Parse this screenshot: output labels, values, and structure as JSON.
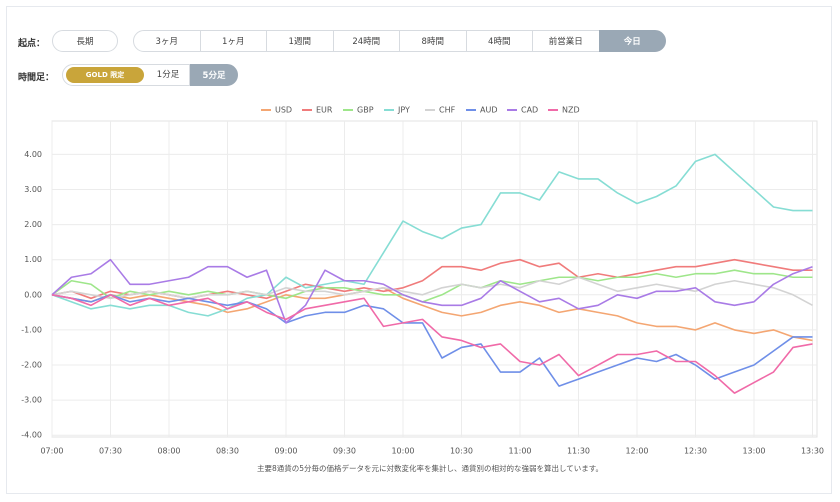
{
  "controls": {
    "start_label": "起点：",
    "long_term": {
      "label": "長期",
      "selected": false
    },
    "start_options": [
      {
        "label": "3ヶ月",
        "selected": false
      },
      {
        "label": "1ヶ月",
        "selected": false
      },
      {
        "label": "1週間",
        "selected": false
      },
      {
        "label": "24時間",
        "selected": false
      },
      {
        "label": "8時間",
        "selected": false
      },
      {
        "label": "4時間",
        "selected": false
      },
      {
        "label": "前営業日",
        "selected": false
      },
      {
        "label": "今日",
        "selected": true
      }
    ],
    "timeframe_label": "時間足：",
    "gold_badge": "GOLD 限定",
    "timeframe_options": [
      {
        "label": "1分足",
        "selected": false
      },
      {
        "label": "5分足",
        "selected": true
      }
    ]
  },
  "chart_data": {
    "type": "line",
    "legend": "top",
    "grid": true,
    "caption": "主要8通貨の5分毎の価格データを元に対数変化率を集計し、通貨別の相対的な強弱を算出しています。",
    "x": [
      "07:00",
      "07:10",
      "07:20",
      "07:30",
      "07:40",
      "07:50",
      "08:00",
      "08:10",
      "08:20",
      "08:30",
      "08:40",
      "08:50",
      "09:00",
      "09:10",
      "09:20",
      "09:30",
      "09:40",
      "09:50",
      "10:00",
      "10:10",
      "10:20",
      "10:30",
      "10:40",
      "10:50",
      "11:00",
      "11:10",
      "11:20",
      "11:30",
      "11:40",
      "11:50",
      "12:00",
      "12:10",
      "12:20",
      "12:30",
      "12:40",
      "12:50",
      "13:00",
      "13:10",
      "13:20",
      "13:30"
    ],
    "xticks": [
      "07:00",
      "07:30",
      "08:00",
      "08:30",
      "09:00",
      "09:30",
      "10:00",
      "10:30",
      "11:00",
      "11:30",
      "12:00",
      "12:30",
      "13:00",
      "13:30"
    ],
    "ylim": [
      -4.05,
      4.95
    ],
    "yticks": [
      {
        "value": 4,
        "label": "4.00"
      },
      {
        "value": 3,
        "label": "3.00"
      },
      {
        "value": 2,
        "label": "2.00"
      },
      {
        "value": 1,
        "label": "1.00"
      },
      {
        "value": 0,
        "label": "0.00"
      },
      {
        "value": -1,
        "label": "-1.00"
      },
      {
        "value": -2,
        "label": "-2.00"
      },
      {
        "value": -3,
        "label": "-3.00"
      },
      {
        "value": -4,
        "label": "-4.00"
      }
    ],
    "series": [
      {
        "name": "USD",
        "color": "#f4a672",
        "values": [
          0,
          -0.1,
          -0.2,
          0,
          -0.1,
          0,
          -0.1,
          -0.2,
          -0.3,
          -0.5,
          -0.4,
          -0.2,
          0,
          -0.1,
          -0.1,
          0,
          0.1,
          0.2,
          -0.1,
          -0.3,
          -0.5,
          -0.6,
          -0.5,
          -0.3,
          -0.2,
          -0.3,
          -0.5,
          -0.4,
          -0.5,
          -0.6,
          -0.8,
          -0.9,
          -0.9,
          -1.0,
          -0.8,
          -1.0,
          -1.1,
          -1.0,
          -1.2,
          -1.3
        ]
      },
      {
        "name": "EUR",
        "color": "#f07b7b",
        "values": [
          0,
          0.1,
          -0.1,
          0.1,
          0,
          0.1,
          0,
          -0.1,
          0,
          0.1,
          0,
          -0.1,
          0.1,
          0.3,
          0.2,
          0.1,
          0.2,
          0.1,
          0.2,
          0.4,
          0.8,
          0.8,
          0.7,
          0.9,
          1.0,
          0.8,
          0.9,
          0.5,
          0.6,
          0.5,
          0.6,
          0.7,
          0.8,
          0.8,
          0.9,
          1.0,
          0.9,
          0.8,
          0.7,
          0.7
        ]
      },
      {
        "name": "GBP",
        "color": "#9ee68a",
        "values": [
          0,
          0.4,
          0.3,
          -0.1,
          0.1,
          0,
          0.1,
          0,
          0.1,
          0,
          0.1,
          0,
          -0.1,
          0.1,
          0.2,
          0.2,
          0.1,
          0,
          0,
          -0.2,
          0,
          0.3,
          0.2,
          0.4,
          0.3,
          0.4,
          0.5,
          0.5,
          0.4,
          0.5,
          0.5,
          0.6,
          0.5,
          0.6,
          0.6,
          0.7,
          0.6,
          0.6,
          0.5,
          0.5
        ]
      },
      {
        "name": "JPY",
        "color": "#86ddd4",
        "values": [
          0,
          -0.2,
          -0.4,
          -0.3,
          -0.4,
          -0.3,
          -0.3,
          -0.5,
          -0.6,
          -0.4,
          -0.1,
          0,
          0.5,
          0.2,
          0.3,
          0.4,
          0.3,
          1.2,
          2.1,
          1.8,
          1.6,
          1.9,
          2.0,
          2.9,
          2.9,
          2.7,
          3.5,
          3.3,
          3.3,
          2.9,
          2.6,
          2.8,
          3.1,
          3.8,
          4.0,
          3.5,
          3.0,
          2.5,
          2.4,
          2.4
        ]
      },
      {
        "name": "CHF",
        "color": "#d3d3d3",
        "values": [
          0,
          0.1,
          0,
          -0.1,
          0,
          0.1,
          0,
          -0.1,
          0,
          0,
          0.1,
          0,
          0.2,
          0.1,
          0.1,
          0,
          0.1,
          0.2,
          0.1,
          0,
          0.2,
          0.3,
          0.2,
          0.3,
          0.2,
          0.4,
          0.3,
          0.5,
          0.3,
          0.1,
          0.2,
          0.3,
          0.2,
          0.1,
          0.3,
          0.4,
          0.3,
          0.2,
          0,
          -0.3
        ]
      },
      {
        "name": "AUD",
        "color": "#6f8fe8",
        "values": [
          0,
          -0.1,
          -0.2,
          0,
          -0.2,
          -0.1,
          -0.2,
          -0.1,
          -0.2,
          -0.3,
          -0.2,
          -0.4,
          -0.8,
          -0.6,
          -0.5,
          -0.5,
          -0.3,
          -0.4,
          -0.8,
          -0.8,
          -1.8,
          -1.5,
          -1.4,
          -2.2,
          -2.2,
          -1.8,
          -2.6,
          -2.4,
          -2.2,
          -2.0,
          -1.8,
          -1.9,
          -1.7,
          -2.0,
          -2.4,
          -2.2,
          -2.0,
          -1.6,
          -1.2,
          -1.2
        ]
      },
      {
        "name": "CAD",
        "color": "#a97be6",
        "values": [
          0,
          0.5,
          0.6,
          1.0,
          0.3,
          0.3,
          0.4,
          0.5,
          0.8,
          0.8,
          0.5,
          0.7,
          -0.8,
          -0.3,
          0.7,
          0.4,
          0.4,
          0.3,
          0,
          -0.2,
          -0.3,
          -0.3,
          -0.1,
          0.4,
          0.1,
          -0.2,
          -0.1,
          -0.4,
          -0.3,
          0,
          -0.1,
          0.1,
          0.1,
          0.2,
          -0.2,
          -0.3,
          -0.2,
          0.3,
          0.6,
          0.8
        ]
      },
      {
        "name": "NZD",
        "color": "#f06aa8",
        "values": [
          0,
          -0.1,
          -0.3,
          0,
          -0.3,
          -0.1,
          -0.3,
          -0.2,
          -0.1,
          -0.4,
          -0.2,
          -0.5,
          -0.7,
          -0.4,
          -0.3,
          -0.2,
          -0.1,
          -0.9,
          -0.8,
          -0.7,
          -1.2,
          -1.3,
          -1.5,
          -1.4,
          -1.9,
          -2.0,
          -1.7,
          -2.3,
          -2.0,
          -1.7,
          -1.7,
          -1.6,
          -1.9,
          -1.9,
          -2.3,
          -2.8,
          -2.5,
          -2.2,
          -1.5,
          -1.4
        ]
      }
    ]
  }
}
